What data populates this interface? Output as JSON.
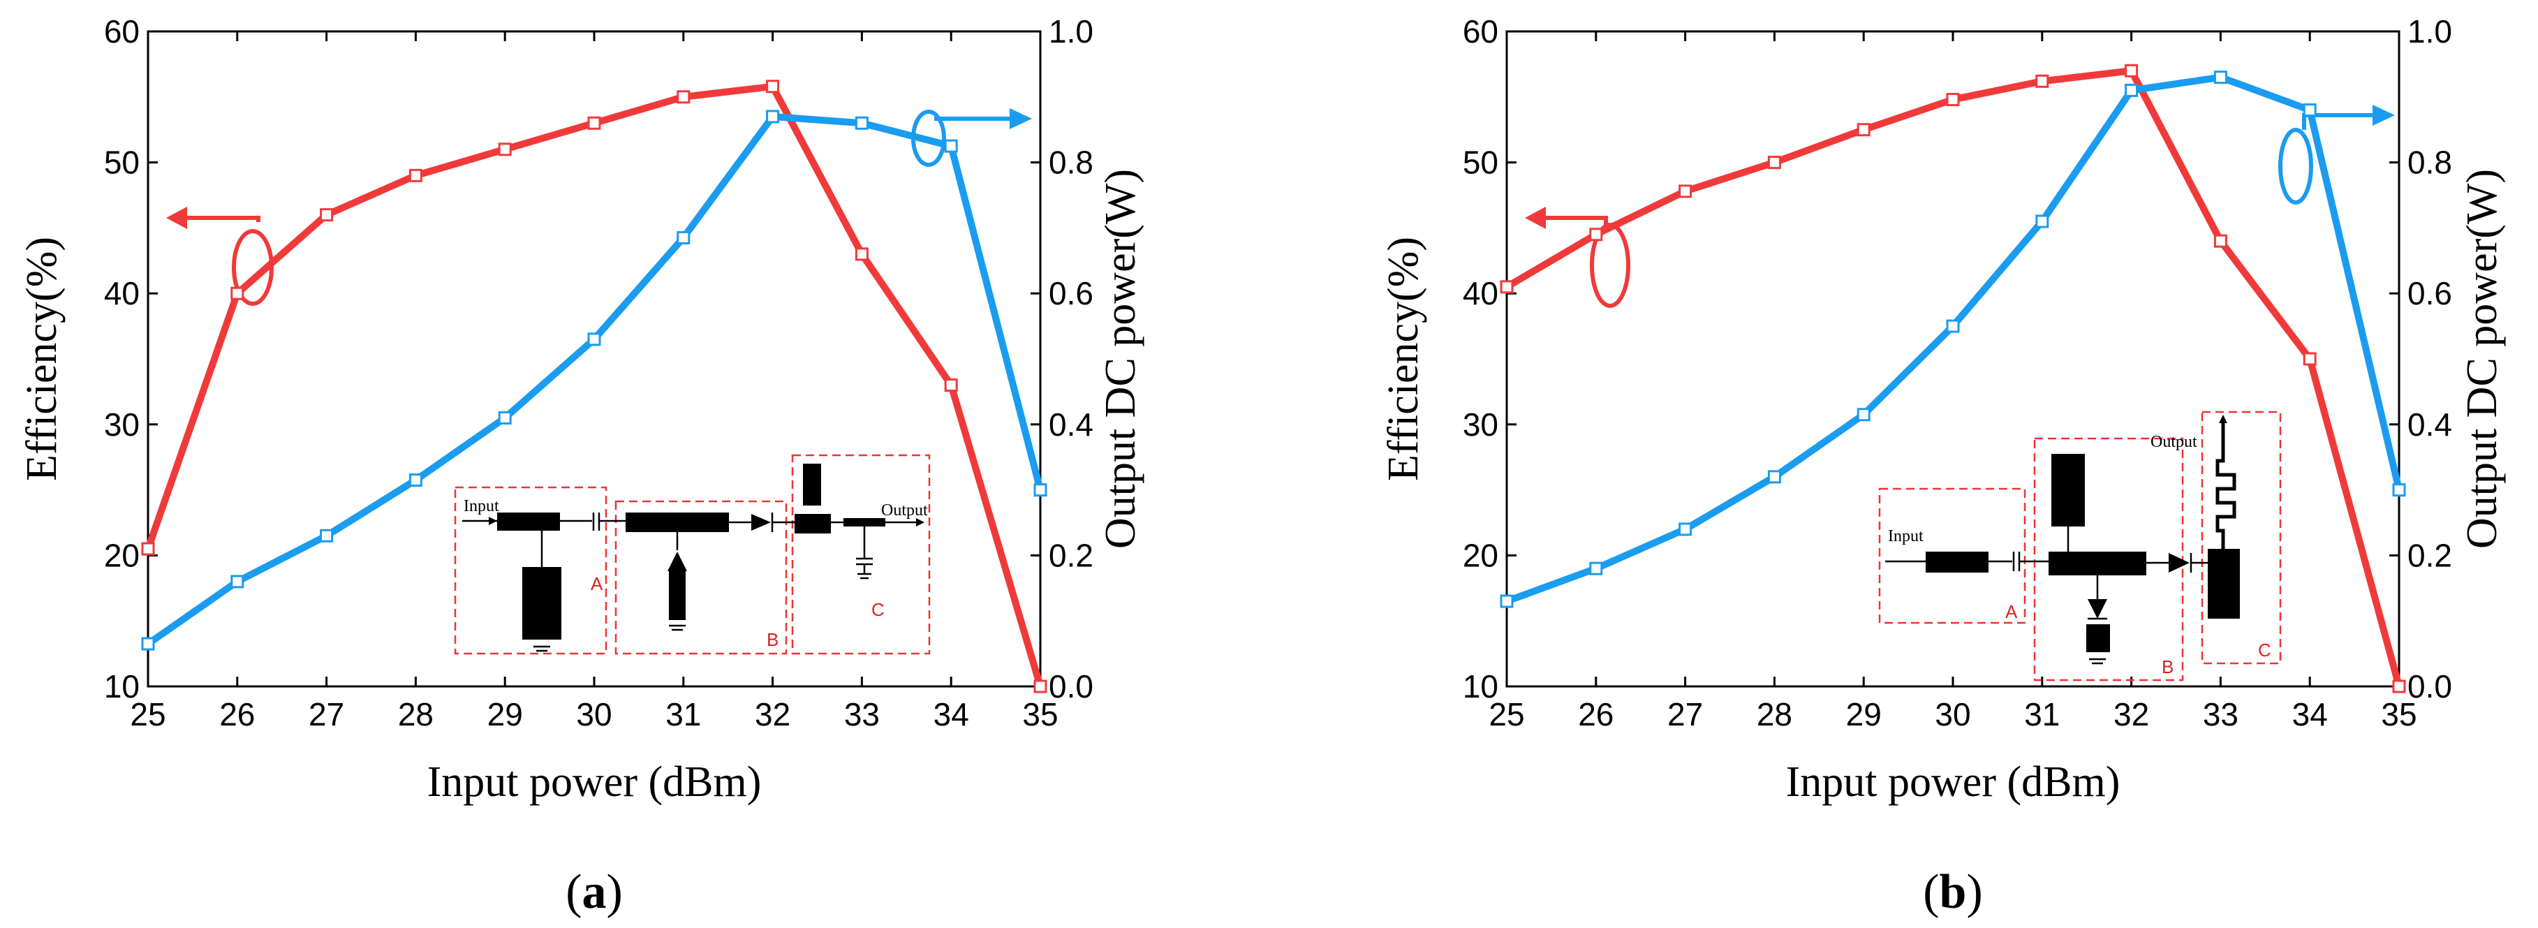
{
  "chart_data": [
    {
      "type": "line",
      "panel_label": "a",
      "xlabel": "Input power (dBm)",
      "ylabel_left": "Efficiency(%)",
      "ylabel_right": "Output DC power(W)",
      "x": [
        25,
        26,
        27,
        28,
        29,
        30,
        31,
        32,
        33,
        34,
        35
      ],
      "xlim": [
        25,
        35
      ],
      "ylim_left": [
        10,
        60
      ],
      "ylim_right": [
        0.0,
        1.0
      ],
      "xticks": [
        "25",
        "26",
        "27",
        "28",
        "29",
        "30",
        "31",
        "32",
        "33",
        "34",
        "35"
      ],
      "yticks_left": [
        "10",
        "20",
        "30",
        "40",
        "50",
        "60"
      ],
      "yticks_right": [
        "0.0",
        "0.2",
        "0.4",
        "0.6",
        "0.8",
        "1.0"
      ],
      "series": [
        {
          "name": "Efficiency",
          "axis": "left",
          "color": "#f03a3a",
          "values": [
            20.5,
            40,
            46,
            49,
            51,
            53,
            55,
            55.8,
            43,
            33,
            10
          ]
        },
        {
          "name": "Output DC power",
          "axis": "right",
          "color": "#1a9cf0",
          "values": [
            0.065,
            0.16,
            0.23,
            0.315,
            0.41,
            0.53,
            0.685,
            0.87,
            0.86,
            0.825,
            0.3
          ]
        }
      ],
      "inset": {
        "input_label": "Input",
        "output_label": "Output",
        "sections": [
          "A",
          "B",
          "C"
        ]
      }
    },
    {
      "type": "line",
      "panel_label": "b",
      "xlabel": "Input power (dBm)",
      "ylabel_left": "Efficiency(%)",
      "ylabel_right": "Output DC power(W)",
      "x": [
        25,
        26,
        27,
        28,
        29,
        30,
        31,
        32,
        33,
        34,
        35
      ],
      "xlim": [
        25,
        35
      ],
      "ylim_left": [
        10,
        60
      ],
      "ylim_right": [
        0.0,
        1.0
      ],
      "xticks": [
        "25",
        "26",
        "27",
        "28",
        "29",
        "30",
        "31",
        "32",
        "33",
        "34",
        "35"
      ],
      "yticks_left": [
        "10",
        "20",
        "30",
        "40",
        "50",
        "60"
      ],
      "yticks_right": [
        "0.0",
        "0.2",
        "0.4",
        "0.6",
        "0.8",
        "1.0"
      ],
      "series": [
        {
          "name": "Efficiency",
          "axis": "left",
          "color": "#f03a3a",
          "values": [
            40.5,
            44.5,
            47.8,
            50,
            52.5,
            54.8,
            56.2,
            57,
            44,
            35,
            10
          ]
        },
        {
          "name": "Output DC power",
          "axis": "right",
          "color": "#1a9cf0",
          "values": [
            0.13,
            0.18,
            0.24,
            0.32,
            0.415,
            0.55,
            0.71,
            0.91,
            0.93,
            0.88,
            0.3
          ]
        }
      ],
      "inset": {
        "input_label": "Input",
        "output_label": "Output",
        "sections": [
          "A",
          "B",
          "C"
        ]
      }
    }
  ]
}
